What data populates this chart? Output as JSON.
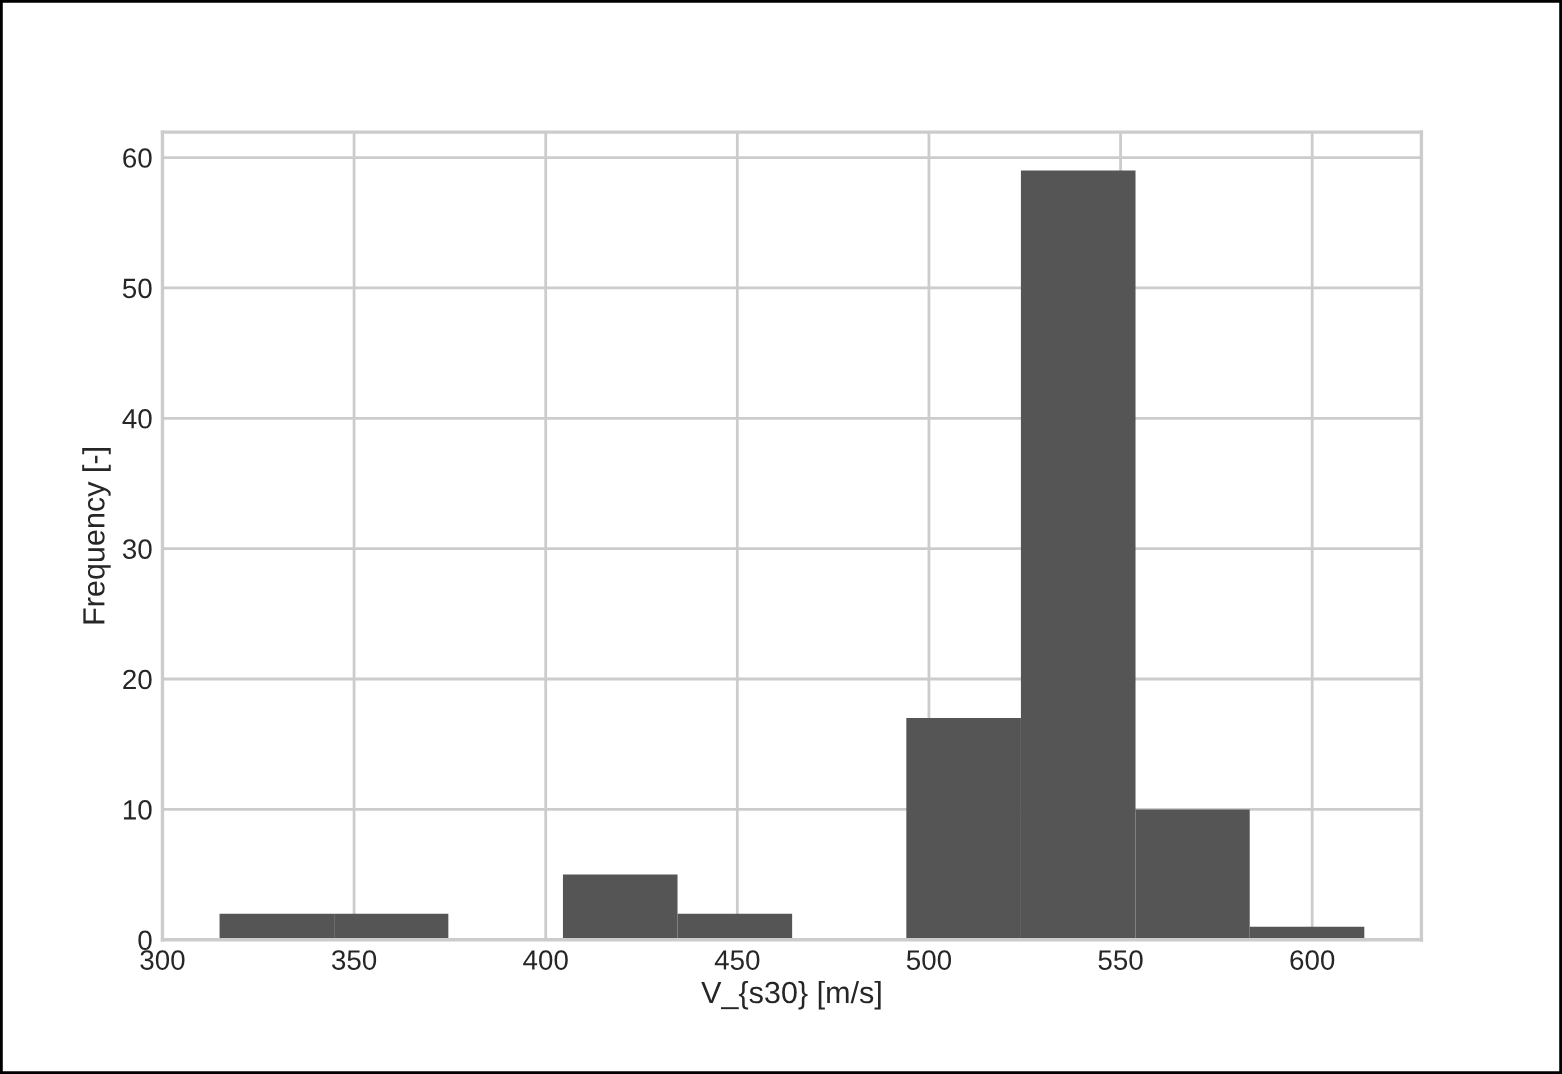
{
  "chart_data": {
    "type": "histogram",
    "xlabel": "V_{s30} [m/s]",
    "ylabel": "Frequency [-]",
    "bins": [
      314.9,
      344.8,
      374.6,
      404.5,
      434.4,
      464.3,
      494.1,
      524.0,
      553.9,
      583.7,
      613.6
    ],
    "values": [
      2,
      2,
      0,
      5,
      2,
      0,
      17,
      59,
      10,
      1
    ],
    "color": "#555555",
    "xlim": [
      300,
      628.5
    ],
    "xticks": [
      300,
      350,
      400,
      450,
      500,
      550,
      600
    ],
    "ylim": [
      0,
      61.95
    ],
    "yticks": [
      0,
      10,
      20,
      30,
      40,
      50,
      60
    ],
    "grid": true
  }
}
